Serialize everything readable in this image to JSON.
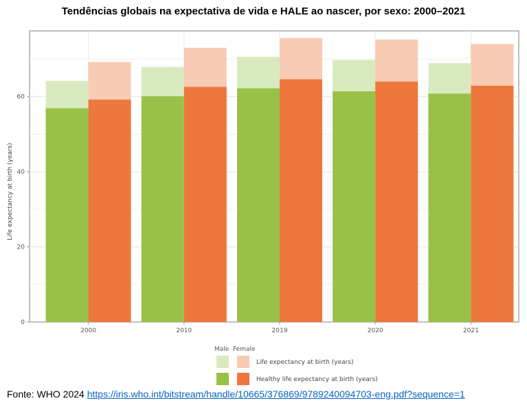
{
  "chart_data": {
    "type": "bar",
    "title": "Tendências globais na expectativa de vida e HALE ao nascer, por sexo: 2000–2021",
    "ylabel": "Life expectancy at birth (years)",
    "xlabel": "",
    "categories": [
      "2000",
      "2010",
      "2019",
      "2020",
      "2021"
    ],
    "ylim": [
      0,
      75
    ],
    "yticks": [
      0,
      20,
      40,
      60
    ],
    "grid": true,
    "series": [
      {
        "name": "Life expectancy at birth (years)",
        "group": "Male",
        "values": [
          64.2,
          67.9,
          70.6,
          69.8,
          68.9
        ],
        "color": "#d9eac0"
      },
      {
        "name": "Healthy life expectancy at birth (years)",
        "group": "Male",
        "values": [
          56.9,
          60.1,
          62.2,
          61.4,
          60.8
        ],
        "color": "#98c147"
      },
      {
        "name": "Life expectancy at birth (years)",
        "group": "Female",
        "values": [
          69.2,
          73.0,
          75.6,
          75.2,
          74.0
        ],
        "color": "#f8cbb4"
      },
      {
        "name": "Healthy life expectancy at birth (years)",
        "group": "Female",
        "values": [
          59.2,
          62.6,
          64.6,
          64.0,
          62.9
        ],
        "color": "#ee773d"
      }
    ]
  },
  "legend": {
    "male_header": "Male",
    "female_header": "Female",
    "le_label": "Life expectancy at birth (years)",
    "hale_label": "Healthy life expectancy at birth (years)"
  },
  "footer": {
    "prefix": "Fonte: WHO 2024",
    "link_text": "https://iris.who.int/bitstream/handle/10665/376869/9789240094703-eng.pdf?sequence=1"
  }
}
